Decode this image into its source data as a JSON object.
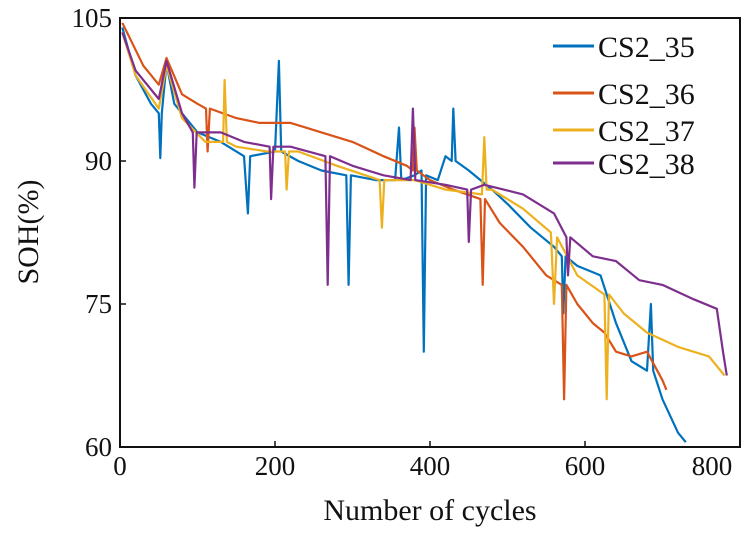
{
  "chart_data": {
    "type": "line",
    "title": "",
    "xlabel": "Number of cycles",
    "ylabel": "SOH(%)",
    "xlim": [
      0,
      800
    ],
    "ylim": [
      60,
      105
    ],
    "xticks": [
      0,
      200,
      400,
      600,
      800
    ],
    "yticks": [
      60,
      75,
      90,
      105
    ],
    "grid": false,
    "legend_position": "top-right",
    "series": [
      {
        "name": "CS2_35",
        "color": "#0072BD",
        "points": [
          [
            3,
            104
          ],
          [
            20,
            99
          ],
          [
            40,
            96
          ],
          [
            50,
            95
          ],
          [
            52,
            90.3
          ],
          [
            54,
            95
          ],
          [
            60,
            100.2
          ],
          [
            70,
            96
          ],
          [
            100,
            93
          ],
          [
            130,
            92
          ],
          [
            160,
            90.5
          ],
          [
            165,
            84.5
          ],
          [
            168,
            90.5
          ],
          [
            200,
            91
          ],
          [
            205,
            100.5
          ],
          [
            208,
            91
          ],
          [
            230,
            90
          ],
          [
            260,
            89
          ],
          [
            292,
            88.5
          ],
          [
            295,
            77
          ],
          [
            298,
            88.5
          ],
          [
            330,
            88
          ],
          [
            355,
            88
          ],
          [
            360,
            93.5
          ],
          [
            363,
            88
          ],
          [
            380,
            88.5
          ],
          [
            389,
            89
          ],
          [
            392,
            70
          ],
          [
            395,
            88.5
          ],
          [
            410,
            88
          ],
          [
            420,
            90.5
          ],
          [
            428,
            90
          ],
          [
            430,
            95.5
          ],
          [
            433,
            90
          ],
          [
            450,
            89
          ],
          [
            480,
            87
          ],
          [
            500,
            85.5
          ],
          [
            530,
            83
          ],
          [
            560,
            81
          ],
          [
            570,
            80
          ],
          [
            572,
            74
          ],
          [
            575,
            80
          ],
          [
            590,
            79
          ],
          [
            620,
            78
          ],
          [
            640,
            73
          ],
          [
            660,
            69
          ],
          [
            680,
            68
          ],
          [
            685,
            75
          ],
          [
            688,
            68
          ],
          [
            700,
            65
          ],
          [
            720,
            61.5
          ],
          [
            730,
            60.5
          ]
        ]
      },
      {
        "name": "CS2_36",
        "color": "#D95319",
        "points": [
          [
            3,
            104.5
          ],
          [
            30,
            100
          ],
          [
            50,
            98
          ],
          [
            60,
            100.8
          ],
          [
            80,
            97
          ],
          [
            100,
            96
          ],
          [
            111,
            95.5
          ],
          [
            113,
            91
          ],
          [
            116,
            95.5
          ],
          [
            150,
            94.5
          ],
          [
            180,
            94
          ],
          [
            220,
            94
          ],
          [
            260,
            93
          ],
          [
            300,
            92
          ],
          [
            340,
            90.5
          ],
          [
            370,
            89.5
          ],
          [
            378,
            89
          ],
          [
            380,
            93.5
          ],
          [
            383,
            89
          ],
          [
            400,
            88
          ],
          [
            430,
            87
          ],
          [
            465,
            86
          ],
          [
            468,
            77
          ],
          [
            471,
            86
          ],
          [
            490,
            83.5
          ],
          [
            520,
            81
          ],
          [
            550,
            78
          ],
          [
            570,
            77
          ],
          [
            573,
            65
          ],
          [
            576,
            77
          ],
          [
            590,
            75
          ],
          [
            610,
            73
          ],
          [
            625,
            72
          ],
          [
            640,
            70
          ],
          [
            660,
            69.5
          ],
          [
            680,
            70
          ],
          [
            700,
            67
          ],
          [
            705,
            66
          ]
        ]
      },
      {
        "name": "CS2_37",
        "color": "#EDB120",
        "points": [
          [
            3,
            103.5
          ],
          [
            20,
            99
          ],
          [
            50,
            95.5
          ],
          [
            60,
            100
          ],
          [
            80,
            94.5
          ],
          [
            110,
            92
          ],
          [
            133,
            92
          ],
          [
            135,
            98.5
          ],
          [
            138,
            92
          ],
          [
            150,
            91.5
          ],
          [
            190,
            91
          ],
          [
            213,
            91
          ],
          [
            215,
            87
          ],
          [
            218,
            91
          ],
          [
            230,
            91
          ],
          [
            280,
            89.5
          ],
          [
            335,
            88
          ],
          [
            338,
            83
          ],
          [
            341,
            88
          ],
          [
            380,
            88
          ],
          [
            420,
            87
          ],
          [
            467,
            86.5
          ],
          [
            470,
            92.5
          ],
          [
            473,
            87
          ],
          [
            480,
            87
          ],
          [
            520,
            85
          ],
          [
            556,
            82.5
          ],
          [
            560,
            75
          ],
          [
            564,
            82
          ],
          [
            590,
            78
          ],
          [
            625,
            76
          ],
          [
            628,
            65
          ],
          [
            631,
            76
          ],
          [
            650,
            74
          ],
          [
            680,
            72
          ],
          [
            720,
            70.5
          ],
          [
            760,
            69.5
          ],
          [
            780,
            67.5
          ]
        ]
      },
      {
        "name": "CS2_38",
        "color": "#7E2F8E",
        "points": [
          [
            3,
            103.5
          ],
          [
            20,
            99.5
          ],
          [
            50,
            96.5
          ],
          [
            60,
            100.5
          ],
          [
            80,
            95
          ],
          [
            94,
            93
          ],
          [
            96,
            87.2
          ],
          [
            99,
            93
          ],
          [
            130,
            93
          ],
          [
            160,
            92
          ],
          [
            193,
            91.5
          ],
          [
            195,
            86
          ],
          [
            198,
            91.5
          ],
          [
            220,
            91.5
          ],
          [
            265,
            90.5
          ],
          [
            268,
            77
          ],
          [
            271,
            90.5
          ],
          [
            300,
            89.5
          ],
          [
            340,
            88.5
          ],
          [
            375,
            88
          ],
          [
            378,
            95.5
          ],
          [
            381,
            88
          ],
          [
            420,
            87.5
          ],
          [
            448,
            87
          ],
          [
            450,
            81.5
          ],
          [
            453,
            87
          ],
          [
            470,
            87.5
          ],
          [
            520,
            86.5
          ],
          [
            560,
            84.5
          ],
          [
            576,
            82
          ],
          [
            578,
            78
          ],
          [
            581,
            82
          ],
          [
            610,
            80
          ],
          [
            640,
            79.5
          ],
          [
            670,
            77.5
          ],
          [
            700,
            77
          ],
          [
            740,
            75.5
          ],
          [
            770,
            74.5
          ],
          [
            778,
            70
          ],
          [
            783,
            67.5
          ]
        ]
      }
    ]
  }
}
